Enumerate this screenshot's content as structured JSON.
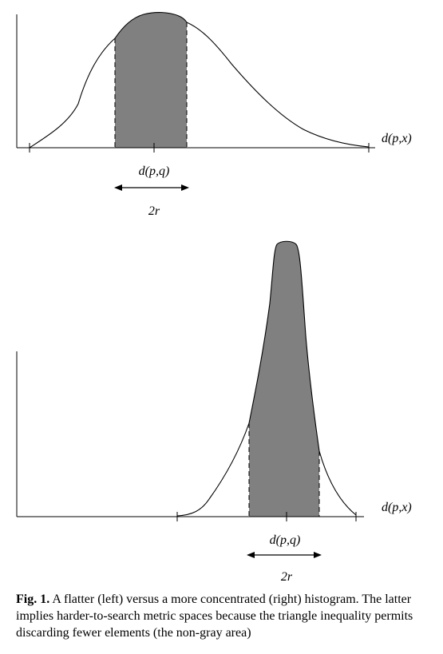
{
  "panels": [
    {
      "id": "flat",
      "axis_label": "d(p,x)",
      "query_label": "d(p,q)",
      "radius_label": "2r"
    },
    {
      "id": "concentrated",
      "axis_label": "d(p,x)",
      "query_label": "d(p,q)",
      "radius_label": "2r"
    }
  ],
  "caption": {
    "label": "Fig. 1.",
    "text": " A flatter (left) versus a more concentrated (right) histogram. The latter implies harder-to-search metric spaces because the triangle inequality permits discarding fewer elements (the non-gray area)"
  },
  "colors": {
    "shaded_region": "#808080",
    "line": "#000000",
    "background": "#ffffff"
  }
}
